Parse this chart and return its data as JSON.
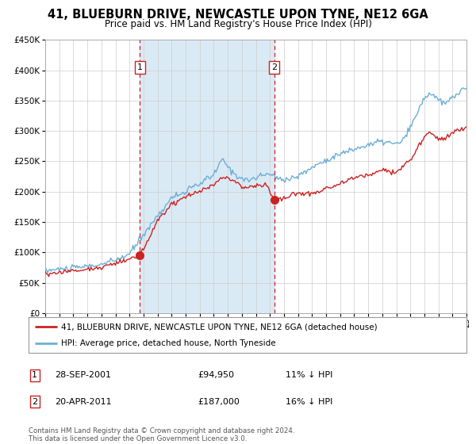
{
  "title": "41, BLUEBURN DRIVE, NEWCASTLE UPON TYNE, NE12 6GA",
  "subtitle": "Price paid vs. HM Land Registry's House Price Index (HPI)",
  "title_fontsize": 10.5,
  "subtitle_fontsize": 8.5,
  "ylim": [
    0,
    450000
  ],
  "yticks": [
    0,
    50000,
    100000,
    150000,
    200000,
    250000,
    300000,
    350000,
    400000,
    450000
  ],
  "ytick_labels": [
    "£0",
    "£50K",
    "£100K",
    "£150K",
    "£200K",
    "£250K",
    "£300K",
    "£350K",
    "£400K",
    "£450K"
  ],
  "hpi_color": "#6baed6",
  "price_color": "#cc2222",
  "sale1_date": 2001.75,
  "sale1_price": 94950,
  "sale2_date": 2011.3,
  "sale2_price": 187000,
  "shade_color": "#daeaf5",
  "legend_label_price": "41, BLUEBURN DRIVE, NEWCASTLE UPON TYNE, NE12 6GA (detached house)",
  "legend_label_hpi": "HPI: Average price, detached house, North Tyneside",
  "annotation1_date": "28-SEP-2001",
  "annotation1_price": "£94,950",
  "annotation1_hpi": "11% ↓ HPI",
  "annotation2_date": "20-APR-2011",
  "annotation2_price": "£187,000",
  "annotation2_hpi": "16% ↓ HPI",
  "footer1": "Contains HM Land Registry data © Crown copyright and database right 2024.",
  "footer2": "This data is licensed under the Open Government Licence v3.0.",
  "background_color": "#ffffff",
  "grid_color": "#cccccc",
  "spine_color": "#aaaaaa"
}
